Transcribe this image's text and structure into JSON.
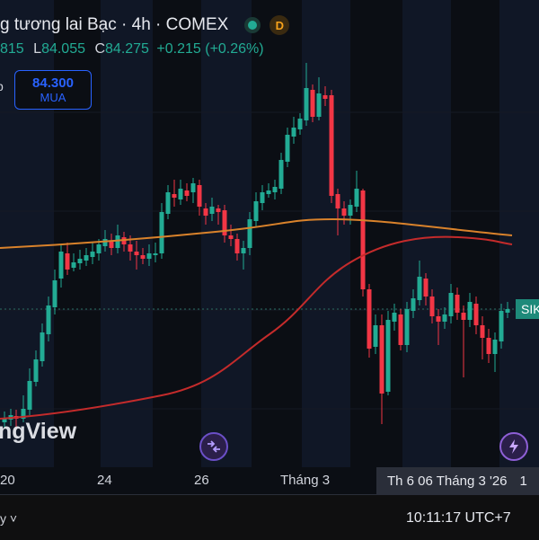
{
  "header": {
    "title": "g tương lai Bạc · 4h · COMEX",
    "status_dot_color": "#22ab94",
    "delayed_badge": "D"
  },
  "ohlc": {
    "o_tail": "815",
    "low_label": "L",
    "low": "84.055",
    "close_label": "C",
    "close": "84.275",
    "change": "+0.215 (+0.26%)"
  },
  "trade": {
    "buy_price": "84.300",
    "buy_label": "MUA",
    "side_p": "p"
  },
  "watermark": "ngView",
  "symbol_tag": "SIK",
  "xaxis": {
    "ticks": [
      "20",
      "24",
      "26",
      "Tháng 3"
    ],
    "highlight": "Th 6 06 Tháng 3 '26",
    "after": "1"
  },
  "footer": {
    "left_glyphs": "y ˅",
    "clock": "10:11:17 UTC+7"
  },
  "colors": {
    "up": "#22ab94",
    "down": "#f23645",
    "ma_orange": "#d9822b",
    "ma_red": "#c42b2b",
    "accent": "#2962ff"
  },
  "icons": [
    "arrows-swap-icon",
    "lightning-icon",
    "chevron-down-icon"
  ]
}
